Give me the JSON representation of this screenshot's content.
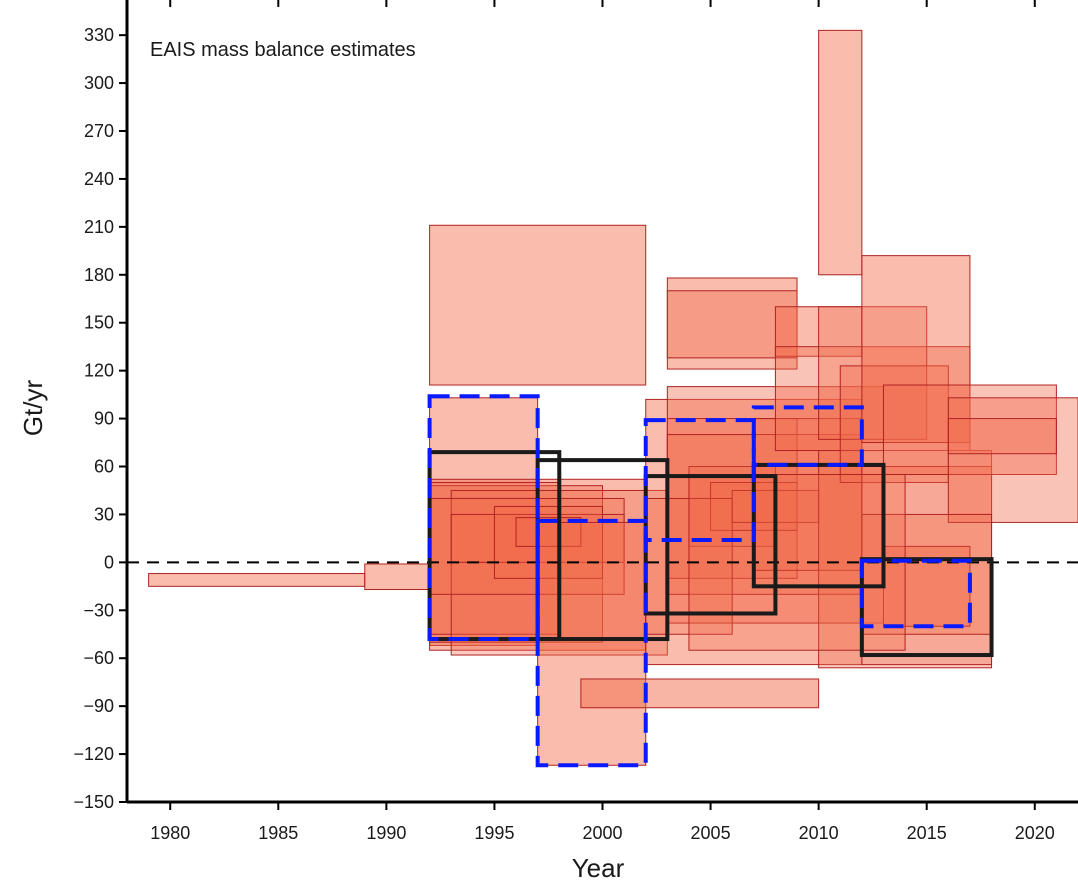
{
  "chart_data": {
    "type": "rect-range",
    "annotation": "EAIS mass balance estimates",
    "xlabel": "Year",
    "ylabel": "Gt/yr",
    "xlim": [
      1978,
      2022
    ],
    "ylim": [
      -150,
      352
    ],
    "x_ticks": [
      1980,
      1985,
      1990,
      1995,
      2000,
      2005,
      2010,
      2015,
      2020
    ],
    "x_tick_labels": [
      "1980",
      "1985",
      "1990",
      "1995",
      "2000",
      "2005",
      "2010",
      "2015",
      "2020"
    ],
    "y_ticks": [
      -150,
      -120,
      -90,
      -60,
      -30,
      0,
      30,
      60,
      90,
      120,
      150,
      180,
      210,
      240,
      270,
      300,
      330
    ],
    "y_tick_labels": [
      "−150",
      "−120",
      "−90",
      "−60",
      "−30",
      "0",
      "30",
      "60",
      "90",
      "120",
      "150",
      "180",
      "210",
      "240",
      "270",
      "300",
      "330"
    ],
    "zero_line": {
      "y": 0,
      "style": "dashed",
      "color": "#000000"
    },
    "colors": {
      "fill": "#f26a4a",
      "edge": "#b22222",
      "blue_box": "#0a1aff",
      "black_box": "#1a1a1a"
    },
    "estimates": [
      {
        "x0": 1979,
        "x1": 1989,
        "y0": -15,
        "y1": -7,
        "opacity": 0.45
      },
      {
        "x0": 1989,
        "x1": 1992,
        "y0": -17,
        "y1": -1,
        "opacity": 0.45
      },
      {
        "x0": 1992,
        "x1": 2002,
        "y0": 111,
        "y1": 211,
        "opacity": 0.45
      },
      {
        "x0": 1992,
        "x1": 1997,
        "y0": -52,
        "y1": 103,
        "opacity": 0.45
      },
      {
        "x0": 1992,
        "x1": 2002,
        "y0": -55,
        "y1": 52,
        "opacity": 0.45
      },
      {
        "x0": 1992,
        "x1": 2000,
        "y0": -50,
        "y1": 48,
        "opacity": 0.35
      },
      {
        "x0": 1992,
        "x1": 1998,
        "y0": -45,
        "y1": 50,
        "opacity": 0.35
      },
      {
        "x0": 1993,
        "x1": 2003,
        "y0": -58,
        "y1": 45,
        "opacity": 0.35
      },
      {
        "x0": 1992,
        "x1": 2001,
        "y0": -20,
        "y1": 40,
        "opacity": 0.3
      },
      {
        "x0": 1993,
        "x1": 2001,
        "y0": 0,
        "y1": 30,
        "opacity": 0.3
      },
      {
        "x0": 1995,
        "x1": 2000,
        "y0": -10,
        "y1": 35,
        "opacity": 0.3
      },
      {
        "x0": 1996,
        "x1": 1999,
        "y0": 10,
        "y1": 28,
        "opacity": 0.35
      },
      {
        "x0": 1997,
        "x1": 2002,
        "y0": -127,
        "y1": 25,
        "opacity": 0.45
      },
      {
        "x0": 1999,
        "x1": 2010,
        "y0": -91,
        "y1": -73,
        "opacity": 0.5
      },
      {
        "x0": 2002,
        "x1": 2012,
        "y0": -64,
        "y1": 102,
        "opacity": 0.45
      },
      {
        "x0": 2003,
        "x1": 2009,
        "y0": 121,
        "y1": 178,
        "opacity": 0.45
      },
      {
        "x0": 2003,
        "x1": 2009,
        "y0": 128,
        "y1": 170,
        "opacity": 0.4
      },
      {
        "x0": 2003,
        "x1": 2013,
        "y0": -38,
        "y1": 110,
        "opacity": 0.4
      },
      {
        "x0": 2003,
        "x1": 2009,
        "y0": -10,
        "y1": 90,
        "opacity": 0.35
      },
      {
        "x0": 2004,
        "x1": 2008,
        "y0": 10,
        "y1": 60,
        "opacity": 0.35
      },
      {
        "x0": 2003,
        "x1": 2012,
        "y0": -20,
        "y1": 80,
        "opacity": 0.3
      },
      {
        "x0": 2005,
        "x1": 2009,
        "y0": 20,
        "y1": 50,
        "opacity": 0.35
      },
      {
        "x0": 2006,
        "x1": 2010,
        "y0": 25,
        "y1": 45,
        "opacity": 0.35
      },
      {
        "x0": 2007,
        "x1": 2012,
        "y0": -5,
        "y1": 90,
        "opacity": 0.3
      },
      {
        "x0": 2008,
        "x1": 2012,
        "y0": 129,
        "y1": 160,
        "opacity": 0.45
      },
      {
        "x0": 2008,
        "x1": 2017,
        "y0": 70,
        "y1": 135,
        "opacity": 0.4
      },
      {
        "x0": 2010,
        "x1": 2012,
        "y0": 180,
        "y1": 333,
        "opacity": 0.45
      },
      {
        "x0": 2010,
        "x1": 2015,
        "y0": 77,
        "y1": 160,
        "opacity": 0.35
      },
      {
        "x0": 2010,
        "x1": 2018,
        "y0": -66,
        "y1": 70,
        "opacity": 0.35
      },
      {
        "x0": 2011,
        "x1": 2016,
        "y0": 50,
        "y1": 123,
        "opacity": 0.35
      },
      {
        "x0": 2012,
        "x1": 2017,
        "y0": 75,
        "y1": 192,
        "opacity": 0.45
      },
      {
        "x0": 2012,
        "x1": 2018,
        "y0": -64,
        "y1": 60,
        "opacity": 0.35
      },
      {
        "x0": 2013,
        "x1": 2021,
        "y0": 55,
        "y1": 111,
        "opacity": 0.4
      },
      {
        "x0": 2016,
        "x1": 2022,
        "y0": 25,
        "y1": 103,
        "opacity": 0.4
      },
      {
        "x0": 2016,
        "x1": 2021,
        "y0": 68,
        "y1": 90,
        "opacity": 0.35
      },
      {
        "x0": 2013,
        "x1": 2017,
        "y0": -40,
        "y1": 10,
        "opacity": 0.45
      },
      {
        "x0": 2012,
        "x1": 2018,
        "y0": -45,
        "y1": 30,
        "opacity": 0.3
      },
      {
        "x0": 2002,
        "x1": 2006,
        "y0": -45,
        "y1": 40,
        "opacity": 0.3
      },
      {
        "x0": 2004,
        "x1": 2014,
        "y0": -55,
        "y1": 55,
        "opacity": 0.3
      }
    ],
    "black_boxes": [
      {
        "x0": 1992,
        "x1": 1998,
        "y0": -48,
        "y1": 69
      },
      {
        "x0": 1997,
        "x1": 2003,
        "y0": -48,
        "y1": 64
      },
      {
        "x0": 2002,
        "x1": 2008,
        "y0": -32,
        "y1": 54
      },
      {
        "x0": 2007,
        "x1": 2013,
        "y0": -15,
        "y1": 61
      },
      {
        "x0": 2012,
        "x1": 2018,
        "y0": -58,
        "y1": 2
      }
    ],
    "blue_dashed_boxes": [
      {
        "x0": 1992,
        "x1": 1997,
        "y0": -48,
        "y1": 104
      },
      {
        "x0": 1997,
        "x1": 2002,
        "y0": -127,
        "y1": 26
      },
      {
        "x0": 2002,
        "x1": 2007,
        "y0": 14,
        "y1": 89
      },
      {
        "x0": 2007,
        "x1": 2012,
        "y0": 61,
        "y1": 97
      },
      {
        "x0": 2012,
        "x1": 2017,
        "y0": -40,
        "y1": 1
      }
    ]
  }
}
